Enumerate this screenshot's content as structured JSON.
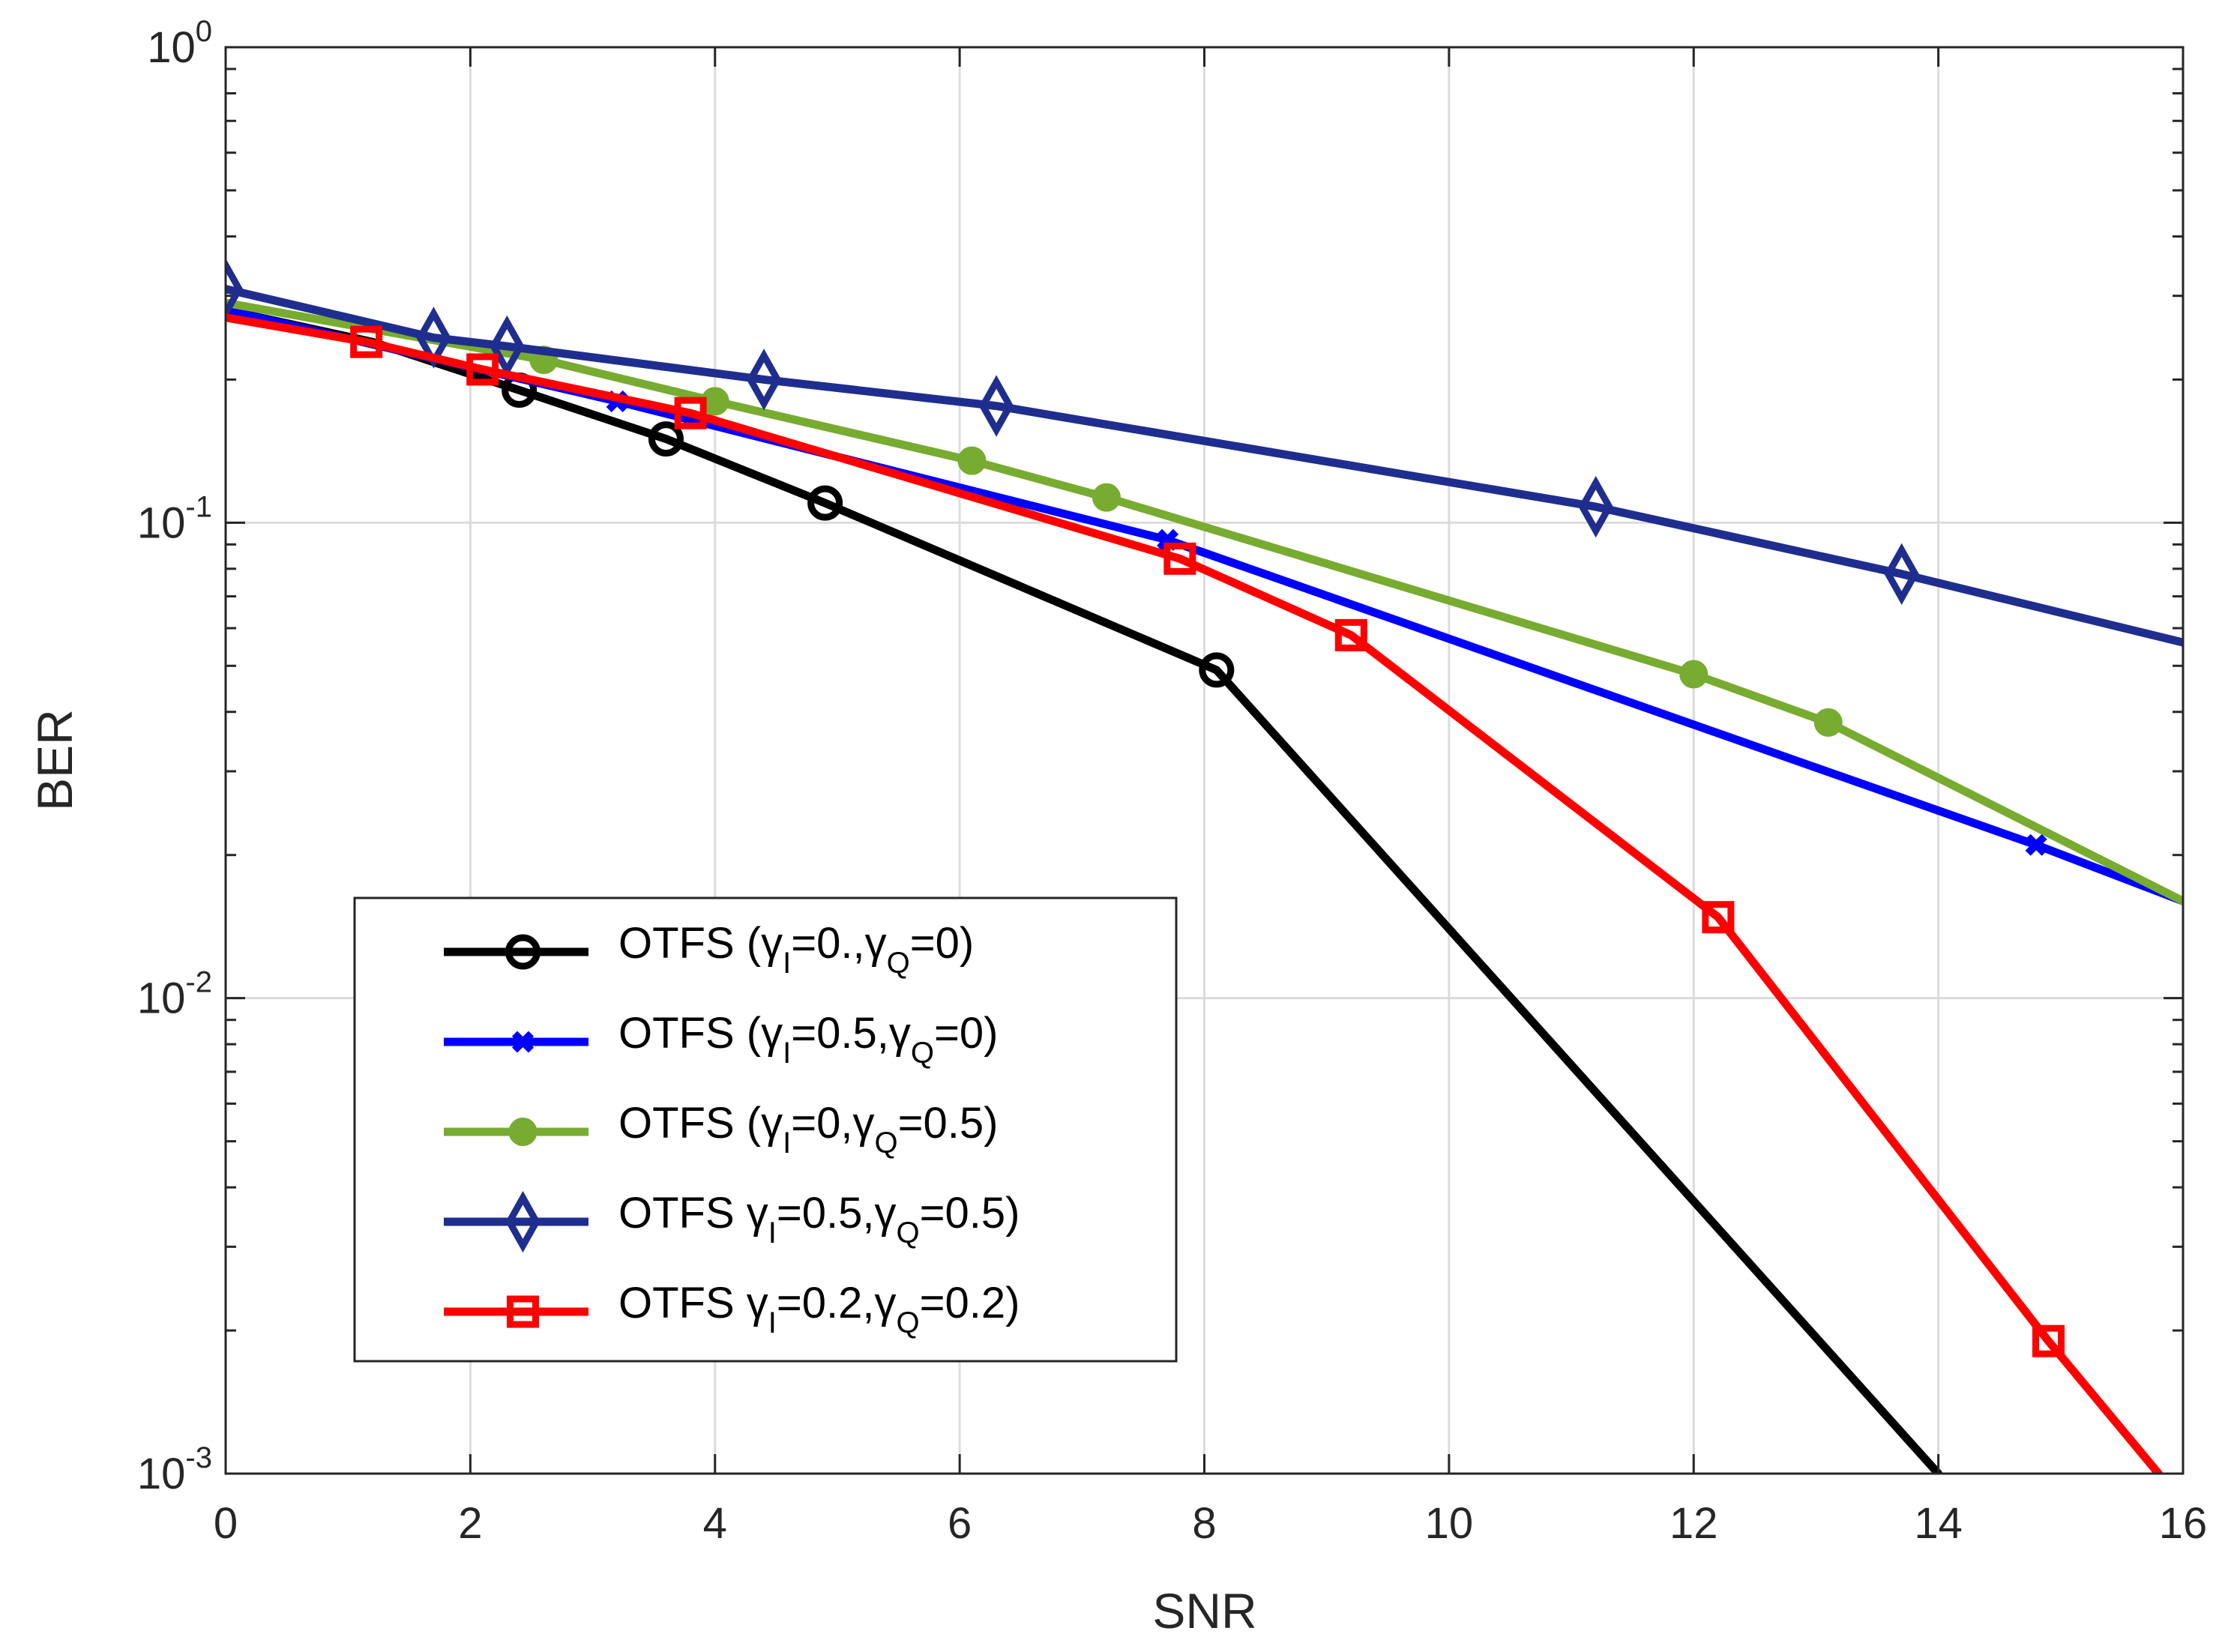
{
  "chart_data": {
    "type": "line",
    "xlabel": "SNR",
    "ylabel": "BER",
    "xlim": [
      0,
      16
    ],
    "ylim": [
      0.001,
      1
    ],
    "yscale": "log",
    "grid": true,
    "legend_position": "lower-left",
    "x_ticks": [
      "0",
      "2",
      "4",
      "6",
      "8",
      "10",
      "12",
      "14",
      "16"
    ],
    "y_ticks": [
      {
        "value": 0.001,
        "base": "10",
        "exp": "-3"
      },
      {
        "value": 0.01,
        "base": "10",
        "exp": "-2"
      },
      {
        "value": 0.1,
        "base": "10",
        "exp": "-1"
      },
      {
        "value": 1,
        "base": "10",
        "exp": "0"
      }
    ],
    "series": [
      {
        "name": "OTFS (γI=0.,γQ=0)",
        "legend": {
          "prefix": "OTFS (",
          "g1": "γ",
          "s1": "I",
          "v1": "=0.,",
          "g2": "γ",
          "s2": "Q",
          "v2": "=0)"
        },
        "color": "#000000",
        "marker": "circle",
        "x": [
          0,
          1.2,
          2.4,
          3.6,
          4.9,
          8.1,
          14
        ],
        "y": [
          0.28,
          0.24,
          0.19,
          0.15,
          0.11,
          0.049,
          0.001
        ],
        "markers_x": [
          2.4,
          3.6,
          4.9,
          8.1
        ]
      },
      {
        "name": "OTFS (γI=0.5,γQ=0)",
        "legend": {
          "prefix": "OTFS (",
          "g1": "γ",
          "s1": "I",
          "v1": "=0.5,",
          "g2": "γ",
          "s2": "Q",
          "v2": "=0)"
        },
        "color": "#0000ff",
        "marker": "x",
        "x": [
          0,
          3.2,
          7.7,
          14.8,
          16
        ],
        "y": [
          0.28,
          0.18,
          0.092,
          0.021,
          0.016
        ],
        "markers_x": [
          3.2,
          7.7,
          14.8
        ]
      },
      {
        "name": "OTFS (γI=0,γQ=0.5)",
        "legend": {
          "prefix": "OTFS (",
          "g1": "γ",
          "s1": "I",
          "v1": "=0,",
          "g2": "γ",
          "s2": "Q",
          "v2": "=0.5)"
        },
        "color": "#77ac30",
        "marker": "filled-circle",
        "x": [
          0,
          2.6,
          4,
          6.1,
          7.2,
          12,
          13.1,
          16
        ],
        "y": [
          0.29,
          0.22,
          0.18,
          0.135,
          0.113,
          0.048,
          0.038,
          0.016
        ],
        "markers_x": [
          2.6,
          4,
          6.1,
          7.2,
          12,
          13.1
        ]
      },
      {
        "name": "OTFS γI=0.5,γQ=0.5)",
        "legend": {
          "prefix": "OTFS ",
          "g1": "γ",
          "s1": "I",
          "v1": "=0.5,",
          "g2": "γ",
          "s2": "Q",
          "v2": "=0.5)"
        },
        "color": "#1f2e8e",
        "marker": "diamond",
        "x": [
          0,
          1.7,
          2.3,
          4.4,
          6.3,
          11.2,
          13.7,
          16
        ],
        "y": [
          0.31,
          0.245,
          0.235,
          0.2,
          0.176,
          0.108,
          0.078,
          0.056
        ],
        "markers_x": [
          0,
          1.7,
          2.3,
          4.4,
          6.3,
          11.2,
          13.7
        ]
      },
      {
        "name": "OTFS γI=0.2,γQ=0.2)",
        "legend": {
          "prefix": "OTFS ",
          "g1": "γ",
          "s1": "I",
          "v1": "=0.2,",
          "g2": "γ",
          "s2": "Q",
          "v2": "=0.2)"
        },
        "color": "#ff0000",
        "marker": "square",
        "x": [
          0,
          1.15,
          2.1,
          3.8,
          7.8,
          9.2,
          12.2,
          14.9,
          15.8
        ],
        "y": [
          0.27,
          0.24,
          0.21,
          0.17,
          0.084,
          0.058,
          0.0148,
          0.0019,
          0.001
        ],
        "markers_x": [
          1.15,
          2.1,
          3.8,
          7.8,
          9.2,
          12.2,
          14.9
        ]
      }
    ]
  }
}
